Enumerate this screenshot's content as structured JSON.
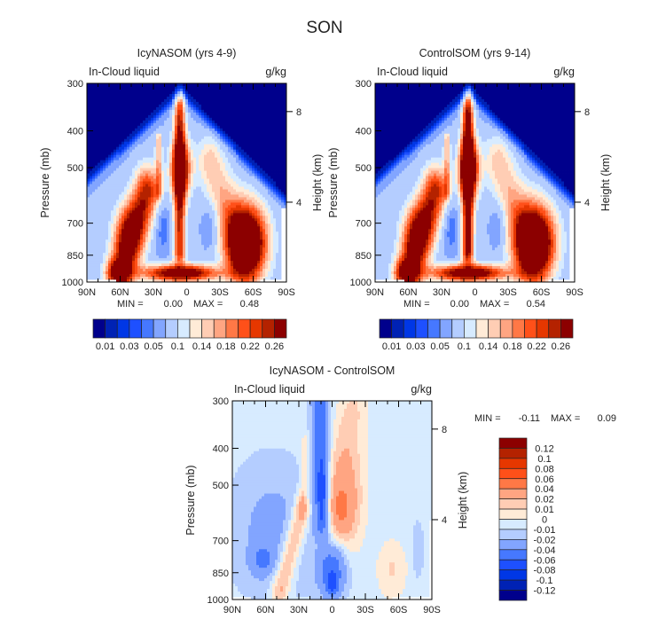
{
  "title": "SON",
  "palette": [
    "#00008c",
    "#0022b4",
    "#0037e6",
    "#1e50ff",
    "#4678ff",
    "#82a5ff",
    "#b4cdff",
    "#d7ebff",
    "#ffebd7",
    "#ffcdb4",
    "#ffa582",
    "#ff7846",
    "#ff5019",
    "#e63700",
    "#b42200",
    "#8c0000"
  ],
  "chart_data": [
    {
      "type": "heatmap",
      "title": "IcyNASOM (yrs 4-9)",
      "left_label": "In-Cloud liquid",
      "units": "g/kg",
      "ylabel": "Pressure (mb)",
      "ylabel_right": "Height (km)",
      "x_ticks": [
        "90N",
        "60N",
        "30N",
        "0",
        "30S",
        "60S",
        "90S"
      ],
      "xlim": [
        90,
        -90
      ],
      "y_ticks": [
        300,
        400,
        500,
        700,
        850,
        1000
      ],
      "ylim": [
        1000,
        300
      ],
      "y_scale": "log",
      "height_ticks": [
        8,
        4
      ],
      "min_label": "MIN =",
      "min": "0.00",
      "max_label": "MAX =",
      "max": "0.48",
      "contour_levels": [
        0.01,
        0.02,
        0.03,
        0.04,
        0.05,
        0.07,
        0.1,
        0.12,
        0.14,
        0.16,
        0.18,
        0.2,
        0.22,
        0.24,
        0.26
      ],
      "colorbar_labels": [
        "0.01",
        "0.03",
        "0.05",
        "0.1",
        "0.14",
        "0.18",
        "0.22",
        "0.26"
      ]
    },
    {
      "type": "heatmap",
      "title": "ControlSOM (yrs 9-14)",
      "left_label": "In-Cloud liquid",
      "units": "g/kg",
      "ylabel": "Pressure (mb)",
      "ylabel_right": "Height (km)",
      "x_ticks": [
        "90N",
        "60N",
        "30N",
        "0",
        "30S",
        "60S",
        "90S"
      ],
      "xlim": [
        90,
        -90
      ],
      "y_ticks": [
        300,
        400,
        500,
        700,
        850,
        1000
      ],
      "ylim": [
        1000,
        300
      ],
      "y_scale": "log",
      "height_ticks": [
        8,
        4
      ],
      "min_label": "MIN =",
      "min": "0.00",
      "max_label": "MAX =",
      "max": "0.54",
      "contour_levels": [
        0.01,
        0.02,
        0.03,
        0.04,
        0.05,
        0.07,
        0.1,
        0.12,
        0.14,
        0.16,
        0.18,
        0.2,
        0.22,
        0.24,
        0.26
      ],
      "colorbar_labels": [
        "0.01",
        "0.03",
        "0.05",
        "0.1",
        "0.14",
        "0.18",
        "0.22",
        "0.26"
      ]
    },
    {
      "type": "heatmap",
      "title": "IcyNASOM - ControlSOM",
      "left_label": "In-Cloud liquid",
      "units": "g/kg",
      "ylabel": "Pressure (mb)",
      "ylabel_right": "Height (km)",
      "x_ticks": [
        "90N",
        "60N",
        "30N",
        "0",
        "30S",
        "60S",
        "90S"
      ],
      "xlim": [
        90,
        -90
      ],
      "y_ticks": [
        300,
        400,
        500,
        700,
        850,
        1000
      ],
      "ylim": [
        1000,
        300
      ],
      "y_scale": "log",
      "height_ticks": [
        8,
        4
      ],
      "min_label": "MIN =",
      "min": "-0.11",
      "max_label": "MAX =",
      "max": "0.09",
      "contour_levels": [
        -0.12,
        -0.1,
        -0.08,
        -0.06,
        -0.04,
        -0.02,
        -0.01,
        0,
        0.01,
        0.02,
        0.04,
        0.06,
        0.08,
        0.1,
        0.12
      ],
      "colorbar_labels": [
        "-0.12",
        "-0.1",
        "-0.08",
        "-0.06",
        "-0.04",
        "-0.02",
        "-0.01",
        "0",
        "0.01",
        "0.02",
        "0.04",
        "0.06",
        "0.08",
        "0.1",
        "0.12"
      ]
    }
  ]
}
